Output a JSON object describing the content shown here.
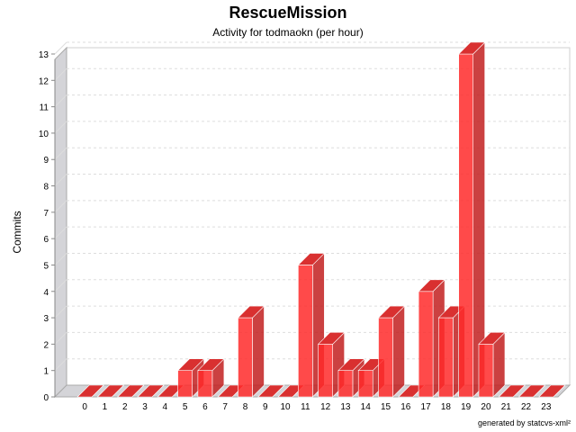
{
  "chart_data": {
    "type": "bar",
    "title": "RescueMission",
    "subtitle": "Activity for todmaokn (per hour)",
    "ylabel": "Commits",
    "xlabel": "",
    "categories": [
      "0",
      "1",
      "2",
      "3",
      "4",
      "5",
      "6",
      "7",
      "8",
      "9",
      "10",
      "11",
      "12",
      "13",
      "14",
      "15",
      "16",
      "17",
      "18",
      "19",
      "20",
      "21",
      "22",
      "23"
    ],
    "values": [
      0,
      0,
      0,
      0,
      0,
      1,
      1,
      0,
      3,
      0,
      0,
      5,
      2,
      1,
      1,
      3,
      0,
      4,
      3,
      13,
      2,
      0,
      0,
      0
    ],
    "ylim": [
      0,
      13
    ],
    "yticks": [
      "0",
      "1",
      "2",
      "3",
      "4",
      "5",
      "6",
      "7",
      "8",
      "9",
      "10",
      "11",
      "12",
      "13"
    ],
    "grid": true,
    "bar_color": "#ff0000",
    "style": "3d"
  },
  "footer": {
    "credit": "generated by statcvs-xml²"
  }
}
